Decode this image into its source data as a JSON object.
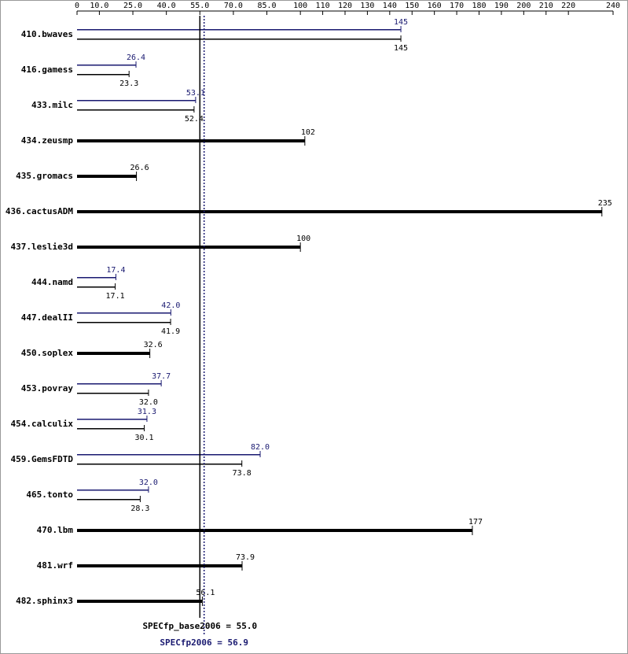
{
  "chart_data": {
    "type": "hbar",
    "categories": [
      "410.bwaves",
      "416.gamess",
      "433.milc",
      "434.zeusmp",
      "435.gromacs",
      "436.cactusADM",
      "437.leslie3d",
      "444.namd",
      "447.dealII",
      "450.soplex",
      "453.povray",
      "454.calculix",
      "459.GemsFDTD",
      "465.tonto",
      "470.lbm",
      "481.wrf",
      "482.sphinx3"
    ],
    "series": [
      {
        "color": "#000000",
        "values": [
          145,
          23.3,
          52.4,
          102,
          26.6,
          235,
          100,
          17.1,
          41.9,
          32.6,
          32.0,
          30.1,
          73.8,
          28.3,
          177,
          73.9,
          56.1
        ],
        "value_labels": [
          "145",
          "23.3",
          "52.4",
          "102",
          "26.6",
          "235",
          "100",
          "17.1",
          "41.9",
          "32.6",
          "32.0",
          "30.1",
          "73.8",
          "28.3",
          "177",
          "73.9",
          "56.1"
        ]
      },
      {
        "color": "#191970",
        "values": [
          145,
          26.4,
          53.1,
          null,
          null,
          null,
          null,
          17.4,
          42.0,
          null,
          37.7,
          31.3,
          82.0,
          32.0,
          null,
          null,
          null
        ],
        "value_labels": [
          "145",
          "26.4",
          "53.1",
          null,
          null,
          null,
          null,
          "17.4",
          "42.0",
          null,
          "37.7",
          "31.3",
          "82.0",
          "32.0",
          null,
          null,
          null
        ]
      }
    ],
    "xlim": [
      0,
      240
    ],
    "xticks": [
      0,
      {
        "value": 10,
        "label": "10.0"
      },
      {
        "value": 25,
        "label": "25.0"
      },
      {
        "value": 40,
        "label": "40.0"
      },
      {
        "value": 55,
        "label": "55.0"
      },
      {
        "value": 70,
        "label": "70.0"
      },
      {
        "value": 85,
        "label": "85.0"
      },
      100,
      110,
      120,
      130,
      140,
      150,
      160,
      170,
      180,
      190,
      200,
      210,
      220,
      240
    ],
    "reference_lines": [
      {
        "label": "SPECfp_base2006 = 55.0",
        "value": 55.0,
        "color": "#000000",
        "style": "solid"
      },
      {
        "label": "SPECfp2006 = 56.9",
        "value": 56.9,
        "color": "#191970",
        "style": "dotted"
      }
    ]
  }
}
